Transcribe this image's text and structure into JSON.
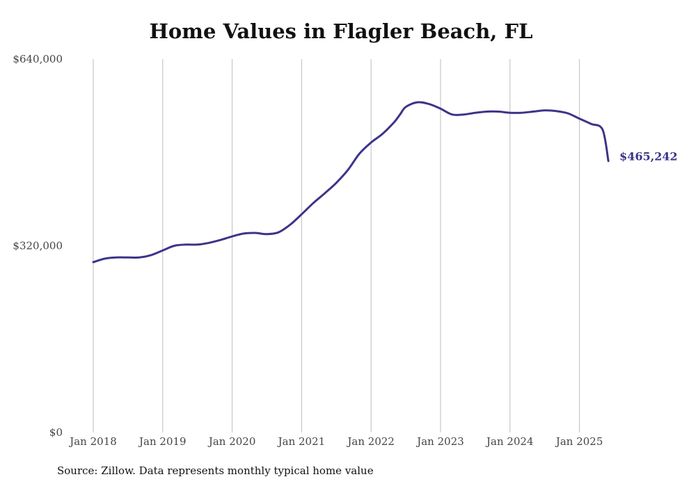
{
  "chart_data": {
    "type": "line",
    "title": "Home Values in Flagler Beach, FL",
    "source": "Source: Zillow. Data represents monthly typical home value",
    "ylim": [
      0,
      640000
    ],
    "y_ticks": [
      {
        "value": 0,
        "label": "$0"
      },
      {
        "value": 320000,
        "label": "$320,000"
      },
      {
        "value": 640000,
        "label": "$640,000"
      }
    ],
    "x_ticks": [
      {
        "value": "2018-01",
        "label": "Jan 2018"
      },
      {
        "value": "2019-01",
        "label": "Jan 2019"
      },
      {
        "value": "2020-01",
        "label": "Jan 2020"
      },
      {
        "value": "2021-01",
        "label": "Jan 2021"
      },
      {
        "value": "2022-01",
        "label": "Jan 2022"
      },
      {
        "value": "2023-01",
        "label": "Jan 2023"
      },
      {
        "value": "2024-01",
        "label": "Jan 2024"
      },
      {
        "value": "2025-01",
        "label": "Jan 2025"
      }
    ],
    "grid": {
      "vertical": true,
      "horizontal": false
    },
    "line_color": "#3c3489",
    "end_label": "$465,242",
    "series": [
      {
        "x": [
          "2018-01",
          "2018-03",
          "2018-05",
          "2018-07",
          "2018-09",
          "2018-11",
          "2019-01",
          "2019-03",
          "2019-05",
          "2019-07",
          "2019-09",
          "2019-11",
          "2020-01",
          "2020-03",
          "2020-05",
          "2020-07",
          "2020-09",
          "2020-11",
          "2021-01",
          "2021-03",
          "2021-05",
          "2021-07",
          "2021-09",
          "2021-11",
          "2022-01",
          "2022-03",
          "2022-05",
          "2022-06",
          "2022-07",
          "2022-09",
          "2022-11",
          "2023-01",
          "2023-03",
          "2023-05",
          "2023-07",
          "2023-09",
          "2023-11",
          "2024-01",
          "2024-03",
          "2024-05",
          "2024-07",
          "2024-09",
          "2024-11",
          "2025-01",
          "2025-03",
          "2025-05",
          "2025-06"
        ],
        "values": [
          292000,
          298000,
          300000,
          300000,
          300000,
          304000,
          312000,
          320000,
          322000,
          322000,
          325000,
          330000,
          336000,
          341000,
          342000,
          340000,
          343000,
          356000,
          374000,
          393000,
          410000,
          428000,
          450000,
          478000,
          497000,
          512000,
          532000,
          545000,
          558000,
          566000,
          563000,
          555000,
          545000,
          545000,
          548000,
          550000,
          550000,
          548000,
          548000,
          550000,
          552000,
          551000,
          547000,
          538000,
          529000,
          519000,
          465242
        ]
      }
    ]
  }
}
